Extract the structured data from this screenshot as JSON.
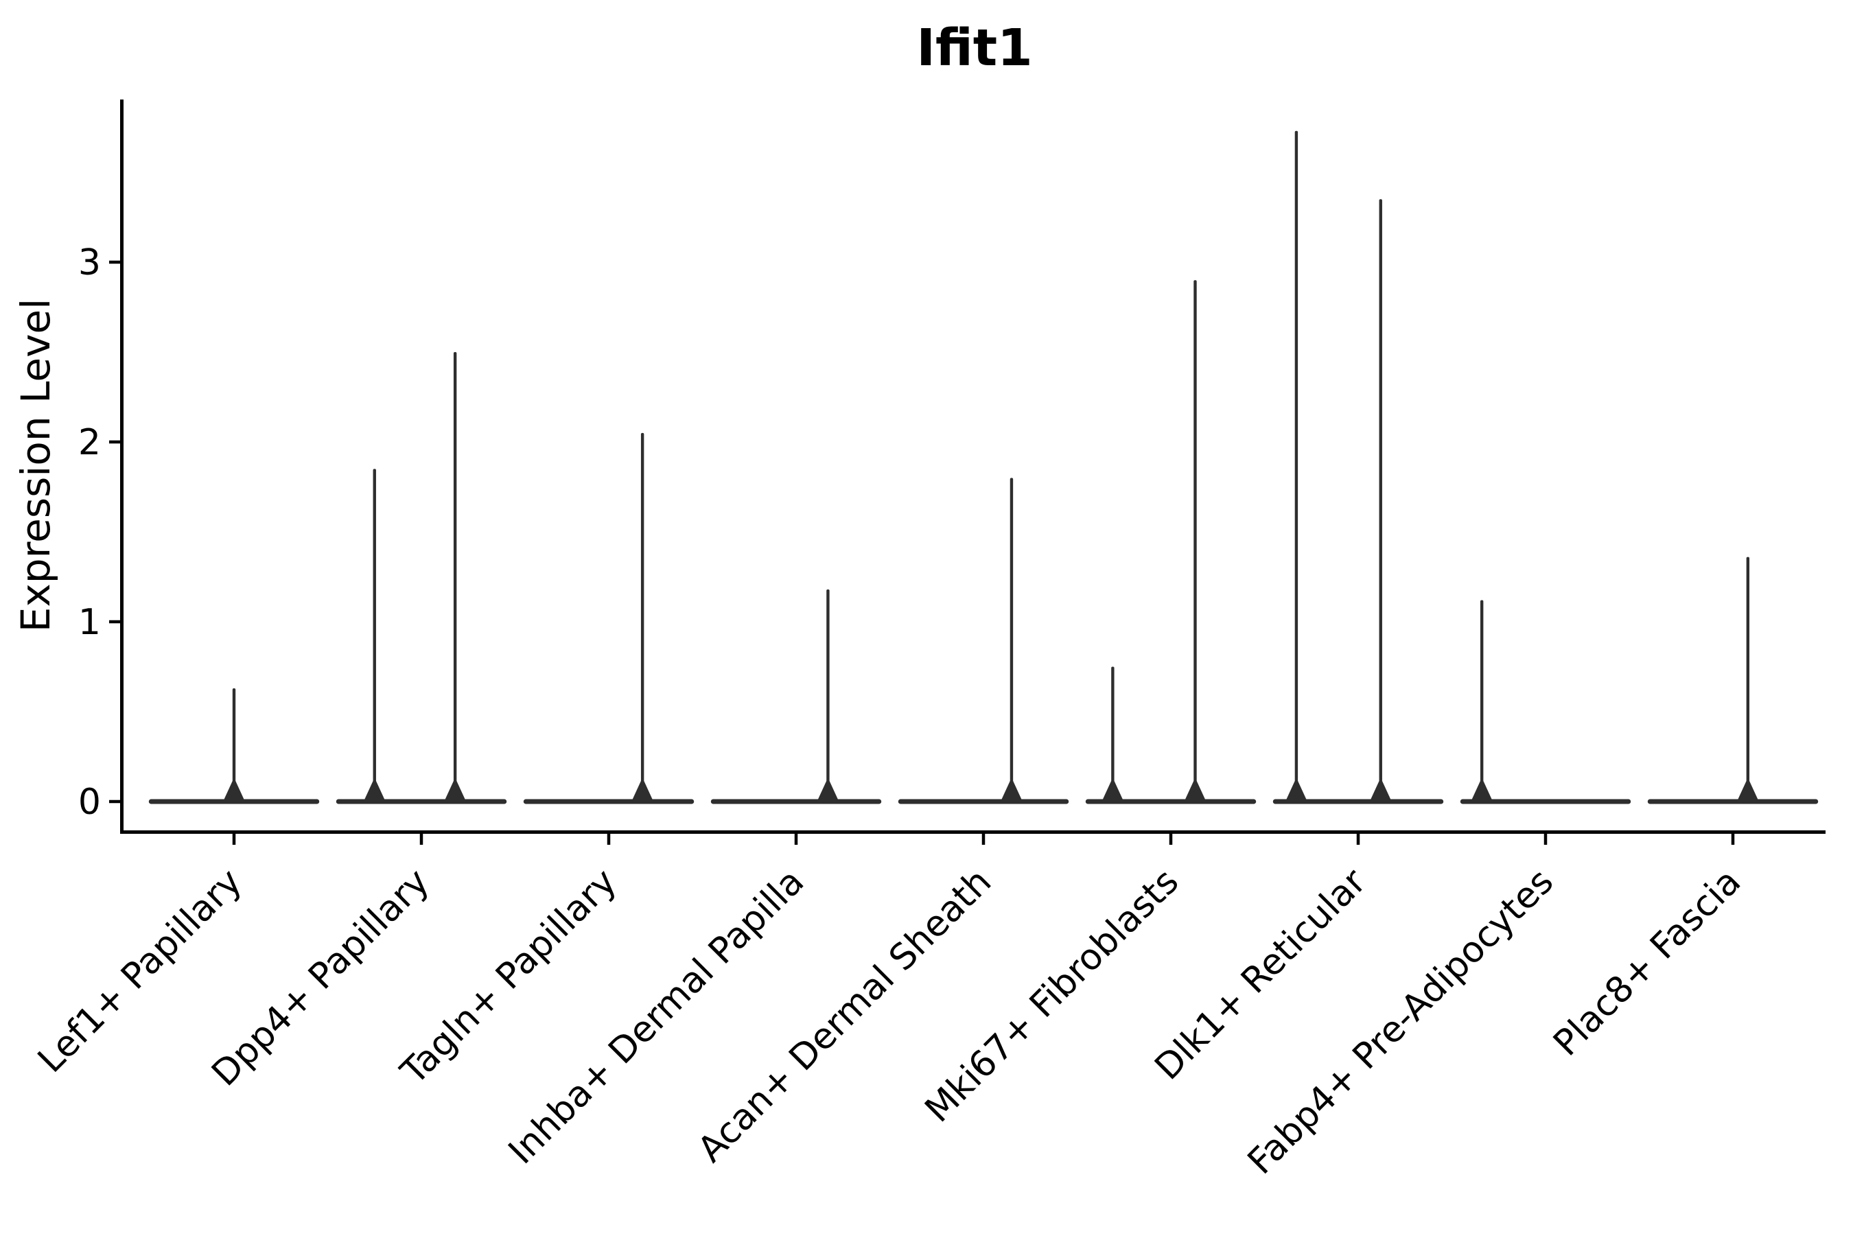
{
  "figure": {
    "background": "#ffffff",
    "ink_color": "#000000",
    "violin_color": "#2e2e2e"
  },
  "chart_data": {
    "type": "violin",
    "title": "Ifit1",
    "xlabel": "",
    "ylabel": "Expression Level",
    "ylim": [
      0,
      3.9
    ],
    "yticks": [
      0,
      1,
      2,
      3
    ],
    "grid": false,
    "legend": null,
    "x_tick_rotation_deg": 45,
    "categories": [
      "Lef1+ Papillary",
      "Dpp4+ Papillary",
      "Tagln+ Papillary",
      "Inhba+ Dermal Papilla",
      "Acan+ Dermal Sheath",
      "Mki67+ Fibroblasts",
      "Dlk1+ Reticular",
      "Fabp4+ Pre-Adipocytes",
      "Plac8+ Fascia"
    ],
    "violin_halfwidth": 0.455,
    "violins": [
      {
        "category": "Lef1+ Papillary",
        "baseline_value": 0,
        "spikes": [
          {
            "offset": 0.0,
            "value": 0.63
          }
        ]
      },
      {
        "category": "Dpp4+ Papillary",
        "baseline_value": 0,
        "spikes": [
          {
            "offset": -0.25,
            "value": 1.85
          },
          {
            "offset": 0.18,
            "value": 2.5
          }
        ]
      },
      {
        "category": "Tagln+ Papillary",
        "baseline_value": 0,
        "spikes": [
          {
            "offset": 0.18,
            "value": 2.05
          }
        ]
      },
      {
        "category": "Inhba+ Dermal Papilla",
        "baseline_value": 0,
        "spikes": [
          {
            "offset": 0.17,
            "value": 1.18
          }
        ]
      },
      {
        "category": "Acan+ Dermal Sheath",
        "baseline_value": 0,
        "spikes": [
          {
            "offset": 0.15,
            "value": 1.8
          }
        ]
      },
      {
        "category": "Mki67+ Fibroblasts",
        "baseline_value": 0,
        "spikes": [
          {
            "offset": -0.31,
            "value": 0.75
          },
          {
            "offset": 0.13,
            "value": 2.9
          }
        ]
      },
      {
        "category": "Dlk1+ Reticular",
        "baseline_value": 0,
        "spikes": [
          {
            "offset": -0.33,
            "value": 3.73
          },
          {
            "offset": 0.12,
            "value": 3.35
          }
        ]
      },
      {
        "category": "Fabp4+ Pre-Adipocytes",
        "baseline_value": 0,
        "spikes": [
          {
            "offset": -0.34,
            "value": 1.12
          }
        ]
      },
      {
        "category": "Plac8+ Fascia",
        "baseline_value": 0,
        "spikes": [
          {
            "offset": 0.08,
            "value": 1.36
          }
        ]
      }
    ]
  }
}
